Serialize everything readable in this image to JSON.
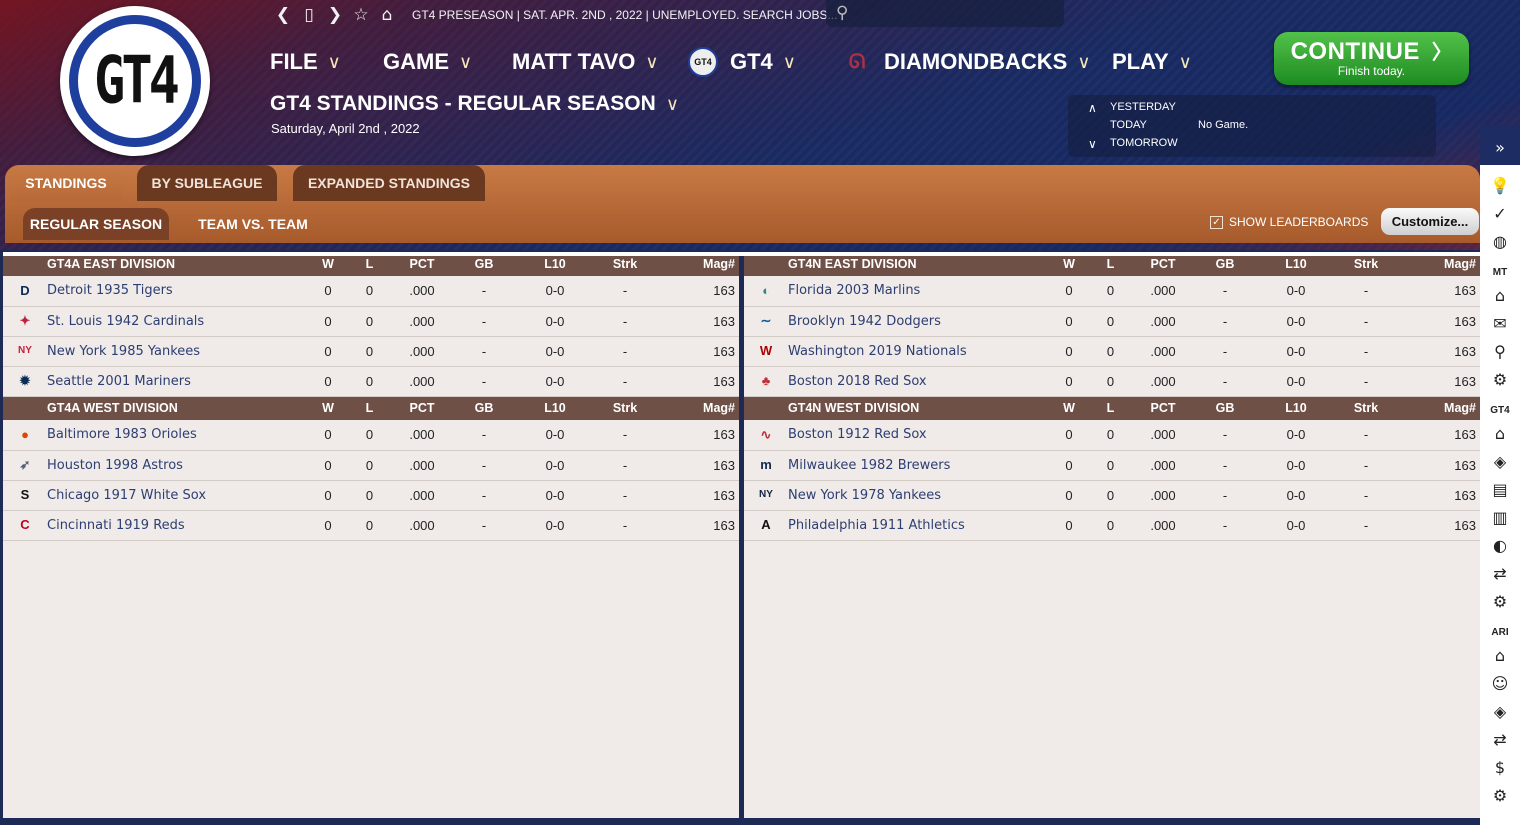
{
  "app": {
    "logo_text": "GT4"
  },
  "topbar": {
    "status": "GT4 PRESEASON  |  SAT. APR. 2ND , 2022  |  UNEMPLOYED. SEARCH JOBS..."
  },
  "menu": {
    "file": "FILE",
    "game": "GAME",
    "manager": "MATT TAVO",
    "league": "GT4",
    "league_badge": "GT4",
    "team": "DIAMONDBACKS",
    "play": "PLAY"
  },
  "continue": {
    "label": "CONTINUE",
    "sub": "Finish today."
  },
  "page": {
    "title": "GT4 STANDINGS - REGULAR SEASON",
    "date": "Saturday, April 2nd , 2022"
  },
  "day_nav": {
    "yesterday": "YESTERDAY",
    "today": "TODAY",
    "tomorrow": "TOMORROW",
    "today_value": "No Game."
  },
  "tabs": [
    "STANDINGS",
    "BY SUBLEAGUE",
    "EXPANDED STANDINGS"
  ],
  "subtabs": [
    "REGULAR SEASON",
    "TEAM VS. TEAM"
  ],
  "show_leaderboards": "SHOW LEADERBOARDS",
  "customize": "Customize...",
  "columns": [
    "W",
    "L",
    "PCT",
    "GB",
    "L10",
    "Strk",
    "Mag#"
  ],
  "divisions": [
    {
      "name": "GT4A EAST DIVISION",
      "teams": [
        {
          "name": "Detroit 1935 Tigers",
          "logo": "D",
          "color": "#0c2c56",
          "w": "0",
          "l": "0",
          "pct": ".000",
          "gb": "-",
          "l10": "0-0",
          "strk": "-",
          "mag": "163"
        },
        {
          "name": "St. Louis 1942 Cardinals",
          "logo": "✦",
          "color": "#c41e3a",
          "w": "0",
          "l": "0",
          "pct": ".000",
          "gb": "-",
          "l10": "0-0",
          "strk": "-",
          "mag": "163"
        },
        {
          "name": "New York 1985 Yankees",
          "logo": "NY",
          "color": "#c41e3a",
          "w": "0",
          "l": "0",
          "pct": ".000",
          "gb": "-",
          "l10": "0-0",
          "strk": "-",
          "mag": "163"
        },
        {
          "name": "Seattle 2001 Mariners",
          "logo": "✹",
          "color": "#0c2c56",
          "w": "0",
          "l": "0",
          "pct": ".000",
          "gb": "-",
          "l10": "0-0",
          "strk": "-",
          "mag": "163"
        }
      ]
    },
    {
      "name": "GT4A WEST DIVISION",
      "teams": [
        {
          "name": "Baltimore 1983 Orioles",
          "logo": "●",
          "color": "#df4601",
          "w": "0",
          "l": "0",
          "pct": ".000",
          "gb": "-",
          "l10": "0-0",
          "strk": "-",
          "mag": "163"
        },
        {
          "name": "Houston 1998 Astros",
          "logo": "➶",
          "color": "#555e7a",
          "w": "0",
          "l": "0",
          "pct": ".000",
          "gb": "-",
          "l10": "0-0",
          "strk": "-",
          "mag": "163"
        },
        {
          "name": "Chicago 1917 White Sox",
          "logo": "S",
          "color": "#111111",
          "w": "0",
          "l": "0",
          "pct": ".000",
          "gb": "-",
          "l10": "0-0",
          "strk": "-",
          "mag": "163"
        },
        {
          "name": "Cincinnati 1919 Reds",
          "logo": "C",
          "color": "#c6011f",
          "w": "0",
          "l": "0",
          "pct": ".000",
          "gb": "-",
          "l10": "0-0",
          "strk": "-",
          "mag": "163"
        }
      ]
    },
    {
      "name": "GT4N EAST DIVISION",
      "teams": [
        {
          "name": "Florida 2003 Marlins",
          "logo": "◐",
          "color": "#2a8a8a",
          "w": "0",
          "l": "0",
          "pct": ".000",
          "gb": "-",
          "l10": "0-0",
          "strk": "-",
          "mag": "163"
        },
        {
          "name": "Brooklyn 1942 Dodgers",
          "logo": "∼",
          "color": "#005a9c",
          "w": "0",
          "l": "0",
          "pct": ".000",
          "gb": "-",
          "l10": "0-0",
          "strk": "-",
          "mag": "163"
        },
        {
          "name": "Washington 2019 Nationals",
          "logo": "W",
          "color": "#ab0003",
          "w": "0",
          "l": "0",
          "pct": ".000",
          "gb": "-",
          "l10": "0-0",
          "strk": "-",
          "mag": "163"
        },
        {
          "name": "Boston 2018 Red Sox",
          "logo": "♣",
          "color": "#bd3039",
          "w": "0",
          "l": "0",
          "pct": ".000",
          "gb": "-",
          "l10": "0-0",
          "strk": "-",
          "mag": "163"
        }
      ]
    },
    {
      "name": "GT4N WEST DIVISION",
      "teams": [
        {
          "name": "Boston 1912 Red Sox",
          "logo": "∿",
          "color": "#bd3039",
          "w": "0",
          "l": "0",
          "pct": ".000",
          "gb": "-",
          "l10": "0-0",
          "strk": "-",
          "mag": "163"
        },
        {
          "name": "Milwaukee 1982 Brewers",
          "logo": "m",
          "color": "#12284b",
          "w": "0",
          "l": "0",
          "pct": ".000",
          "gb": "-",
          "l10": "0-0",
          "strk": "-",
          "mag": "163"
        },
        {
          "name": "New York 1978 Yankees",
          "logo": "NY",
          "color": "#0c2340",
          "w": "0",
          "l": "0",
          "pct": ".000",
          "gb": "-",
          "l10": "0-0",
          "strk": "-",
          "mag": "163"
        },
        {
          "name": "Philadelphia 1911 Athletics",
          "logo": "A",
          "color": "#111111",
          "w": "0",
          "l": "0",
          "pct": ".000",
          "gb": "-",
          "l10": "0-0",
          "strk": "-",
          "mag": "163"
        }
      ]
    }
  ],
  "sidebar": {
    "labels": [
      "MT",
      "GT4",
      "ARI"
    ],
    "icons": [
      "expand-icon",
      "lightbulb-icon",
      "check-icon",
      "globe-icon",
      "home-icon",
      "mail-icon",
      "search-icon",
      "gear-icon",
      "home-icon",
      "location-icon",
      "card-icon",
      "chart-icon",
      "baseball-icon",
      "trade-icon",
      "gear-icon",
      "home-icon",
      "players-icon",
      "location-icon",
      "trade-icon",
      "dollar-icon",
      "gear-icon"
    ]
  }
}
